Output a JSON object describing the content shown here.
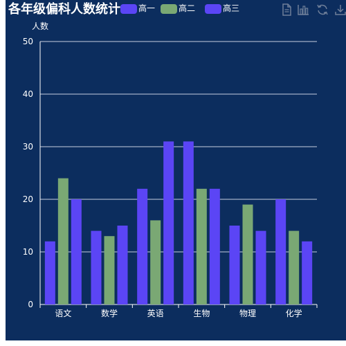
{
  "title": "各年级偏科人数统计",
  "legend": [
    {
      "name": "高一",
      "color": "#5b45f5"
    },
    {
      "name": "高二",
      "color": "#7aa874"
    },
    {
      "name": "高三",
      "color": "#5b45f5"
    }
  ],
  "toolbox": [
    "data-view-icon",
    "bar-chart-icon",
    "restore-icon",
    "download-icon"
  ],
  "chart_data": {
    "type": "bar",
    "ylabel": "人数",
    "categories": [
      "语文",
      "数学",
      "英语",
      "生物",
      "物理",
      "化学"
    ],
    "yticks": [
      "0",
      "10",
      "20",
      "30",
      "40",
      "50"
    ],
    "ylim": [
      0,
      50
    ],
    "grid": true,
    "legend_position": "top",
    "series": [
      {
        "name": "高一",
        "color": "#5b45f5",
        "values": [
          12,
          14,
          22,
          31,
          15,
          20
        ]
      },
      {
        "name": "高二",
        "color": "#7aa874",
        "values": [
          24,
          13,
          16,
          22,
          19,
          14
        ]
      },
      {
        "name": "高三",
        "color": "#5b45f5",
        "values": [
          20,
          15,
          31,
          22,
          14,
          12
        ]
      }
    ]
  }
}
